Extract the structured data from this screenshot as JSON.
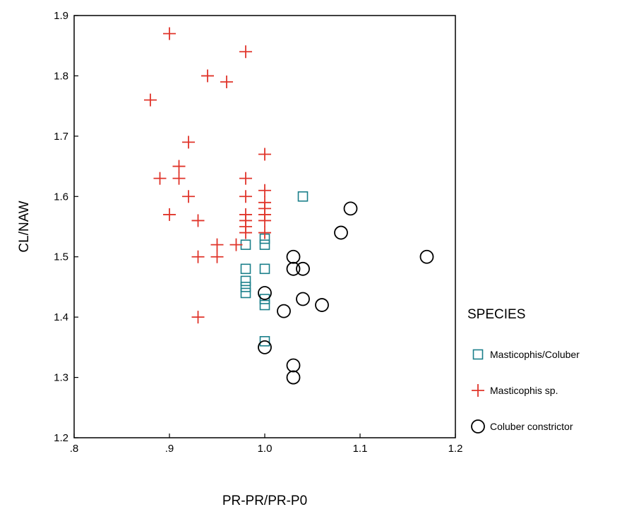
{
  "chart_data": {
    "type": "scatter",
    "xlabel": "PR-PR/PR-P0",
    "ylabel": "CL/NAW",
    "xlim": [
      0.8,
      1.2
    ],
    "ylim": [
      1.2,
      1.9
    ],
    "x_ticks": [
      0.8,
      0.9,
      1.0,
      1.1,
      1.2
    ],
    "x_tick_labels": [
      ".8",
      ".9",
      "1.0",
      "1.1",
      "1.2"
    ],
    "y_ticks": [
      1.2,
      1.3,
      1.4,
      1.5,
      1.6,
      1.7,
      1.8,
      1.9
    ],
    "y_tick_labels": [
      "1.2",
      "1.3",
      "1.4",
      "1.5",
      "1.6",
      "1.7",
      "1.8",
      "1.9"
    ],
    "grid": false,
    "legend_position": "right",
    "legend_title": "SPECIES",
    "series": [
      {
        "name": "Masticophis/Coluber",
        "marker": "square",
        "color": "#1a7f8a",
        "points": [
          [
            1.04,
            1.6
          ],
          [
            0.98,
            1.52
          ],
          [
            1.0,
            1.53
          ],
          [
            1.0,
            1.52
          ],
          [
            0.98,
            1.48
          ],
          [
            1.0,
            1.48
          ],
          [
            0.98,
            1.46
          ],
          [
            0.98,
            1.45
          ],
          [
            0.98,
            1.44
          ],
          [
            1.0,
            1.43
          ],
          [
            1.0,
            1.42
          ],
          [
            1.0,
            1.36
          ]
        ]
      },
      {
        "name": "Masticophis sp.",
        "marker": "plus",
        "color": "#e0342a",
        "points": [
          [
            0.9,
            1.87
          ],
          [
            0.98,
            1.84
          ],
          [
            0.94,
            1.8
          ],
          [
            0.96,
            1.79
          ],
          [
            0.88,
            1.76
          ],
          [
            0.92,
            1.69
          ],
          [
            1.0,
            1.67
          ],
          [
            0.91,
            1.65
          ],
          [
            0.89,
            1.63
          ],
          [
            0.91,
            1.63
          ],
          [
            0.98,
            1.63
          ],
          [
            1.0,
            1.61
          ],
          [
            0.92,
            1.6
          ],
          [
            0.98,
            1.6
          ],
          [
            1.0,
            1.59
          ],
          [
            1.0,
            1.58
          ],
          [
            0.9,
            1.57
          ],
          [
            0.98,
            1.57
          ],
          [
            1.0,
            1.57
          ],
          [
            0.93,
            1.56
          ],
          [
            0.98,
            1.56
          ],
          [
            1.0,
            1.56
          ],
          [
            0.98,
            1.55
          ],
          [
            1.0,
            1.54
          ],
          [
            0.98,
            1.54
          ],
          [
            0.95,
            1.52
          ],
          [
            0.97,
            1.52
          ],
          [
            0.93,
            1.5
          ],
          [
            0.95,
            1.5
          ],
          [
            0.93,
            1.4
          ]
        ]
      },
      {
        "name": "Coluber constrictor",
        "marker": "circle",
        "color": "#000000",
        "points": [
          [
            1.09,
            1.58
          ],
          [
            1.08,
            1.54
          ],
          [
            1.03,
            1.5
          ],
          [
            1.17,
            1.5
          ],
          [
            1.03,
            1.48
          ],
          [
            1.04,
            1.48
          ],
          [
            1.0,
            1.44
          ],
          [
            1.04,
            1.43
          ],
          [
            1.06,
            1.42
          ],
          [
            1.02,
            1.41
          ],
          [
            1.0,
            1.35
          ],
          [
            1.03,
            1.32
          ],
          [
            1.03,
            1.3
          ]
        ]
      }
    ]
  }
}
